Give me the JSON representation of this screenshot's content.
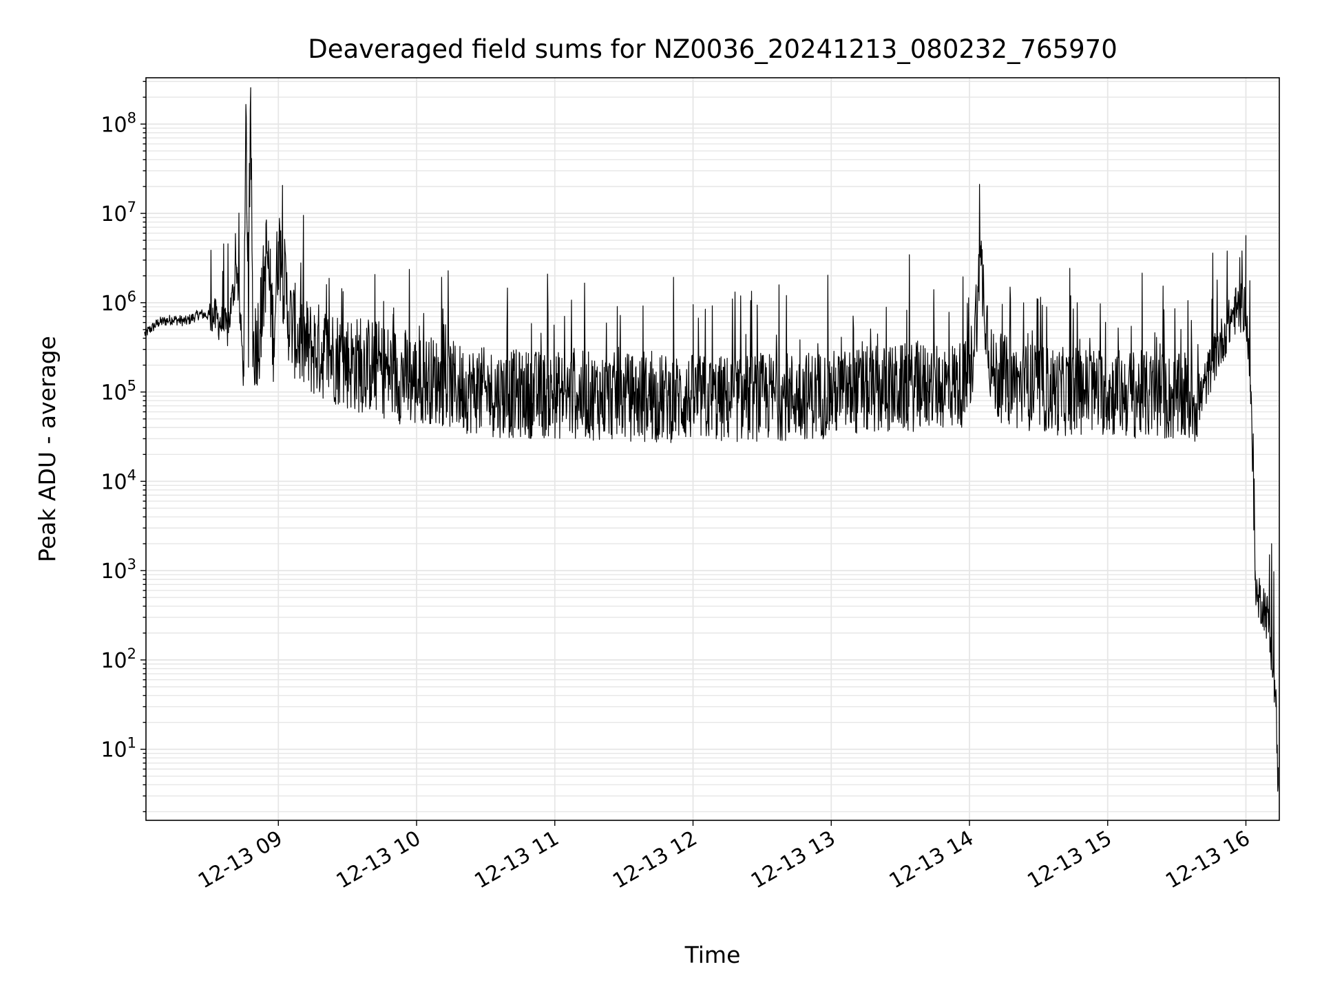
{
  "chart_data": {
    "type": "line",
    "title": "Deaveraged field sums for NZ0036_20241213_080232_765970",
    "xlabel": "Time",
    "ylabel": "Peak ADU - average",
    "y_scale": "log",
    "grid": true,
    "legend": "none",
    "line_color": "#000000",
    "grid_color": "#e6e6e6",
    "x_range": [
      "2024-12-13 08:02:32",
      "2024-12-13 16:14:30"
    ],
    "y_range": [
      1.6,
      330000000
    ],
    "x_tick_labels": [
      "12-13 09",
      "12-13 10",
      "12-13 11",
      "12-13 12",
      "12-13 13",
      "12-13 14",
      "12-13 15",
      "12-13 16"
    ],
    "x_tick_values": [
      "2024-12-13 09:00",
      "2024-12-13 10:00",
      "2024-12-13 11:00",
      "2024-12-13 12:00",
      "2024-12-13 13:00",
      "2024-12-13 14:00",
      "2024-12-13 15:00",
      "2024-12-13 16:00"
    ],
    "y_ticks": [
      {
        "value": 10,
        "base": "10",
        "exp": "1"
      },
      {
        "value": 100,
        "base": "10",
        "exp": "2"
      },
      {
        "value": 1000,
        "base": "10",
        "exp": "3"
      },
      {
        "value": 10000,
        "base": "10",
        "exp": "4"
      },
      {
        "value": 100000,
        "base": "10",
        "exp": "5"
      },
      {
        "value": 1000000,
        "base": "10",
        "exp": "6"
      },
      {
        "value": 10000000,
        "base": "10",
        "exp": "7"
      },
      {
        "value": 100000000,
        "base": "10",
        "exp": "8"
      }
    ],
    "series": [
      {
        "x": [
          "08:02",
          "08:08",
          "08:14",
          "08:20",
          "08:26",
          "08:32",
          "08:38",
          "08:42",
          "08:45",
          "08:46",
          "08:47",
          "08:48",
          "08:49",
          "08:52",
          "08:55",
          "08:58",
          "09:00",
          "09:05",
          "09:10",
          "09:15",
          "09:20",
          "09:25",
          "09:30",
          "09:35",
          "09:40",
          "09:45",
          "09:50",
          "09:55",
          "10:00",
          "10:05",
          "10:10",
          "10:15",
          "10:20",
          "10:25",
          "10:30",
          "10:40",
          "10:50",
          "11:00",
          "11:10",
          "11:20",
          "11:30",
          "11:40",
          "11:50",
          "12:00",
          "12:10",
          "12:20",
          "12:30",
          "12:40",
          "12:50",
          "13:00",
          "13:10",
          "13:20",
          "13:30",
          "13:40",
          "13:50",
          "14:00",
          "14:05",
          "14:10",
          "14:15",
          "14:20",
          "14:30",
          "14:40",
          "14:50",
          "15:00",
          "15:10",
          "15:20",
          "15:30",
          "15:40",
          "15:45",
          "15:50",
          "15:55",
          "16:00",
          "16:02",
          "16:04",
          "16:05",
          "16:06",
          "16:08",
          "16:10",
          "16:12",
          "16:13",
          "16:14"
        ],
        "y": [
          450000,
          600000,
          650000,
          620000,
          750000,
          700000,
          500000,
          2500000,
          150000,
          140000000,
          400000,
          140000000,
          300000,
          500000,
          3800000,
          400000,
          4800000,
          600000,
          350000,
          300000,
          280000,
          250000,
          220000,
          200000,
          200000,
          180000,
          160000,
          150000,
          130000,
          140000,
          130000,
          120000,
          110000,
          105000,
          100000,
          95000,
          95000,
          92000,
          92000,
          90000,
          88000,
          85000,
          85000,
          85000,
          82000,
          85000,
          88000,
          90000,
          92000,
          95000,
          100000,
          105000,
          110000,
          115000,
          120000,
          125000,
          2600000,
          150000,
          140000,
          120000,
          110000,
          100000,
          105000,
          100000,
          95000,
          90000,
          85000,
          80000,
          200000,
          400000,
          800000,
          900000,
          120000,
          1000,
          450,
          500,
          400,
          250,
          80,
          30,
          4
        ]
      }
    ]
  }
}
